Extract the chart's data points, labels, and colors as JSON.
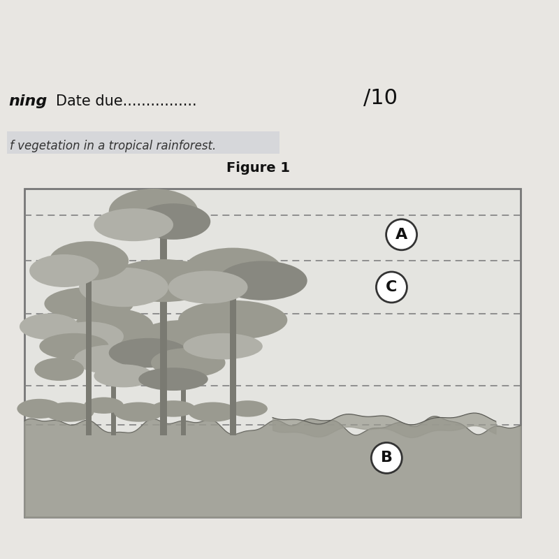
{
  "title": "Figure 1",
  "header_date_due": "Date due................",
  "header_score": "/10",
  "header_left_text": "ning",
  "subtitle": "f vegetation in a tropical rainforest.",
  "bg_page": "#e8e6e2",
  "bg_green": "#2d6b3a",
  "bg_dark": "#1a1a1a",
  "bg_white": "#f0eeea",
  "diagram_bg": "#e8e8e4",
  "diagram_border": "#777777",
  "tree_dark": "#888880",
  "tree_mid": "#9a9a90",
  "tree_light": "#b0b0a8",
  "ground_fill": "#9a9a90",
  "dashed_color": "#808080",
  "label_circle_bg": "#ffffff",
  "label_A": "A",
  "label_B": "B",
  "label_C": "C"
}
